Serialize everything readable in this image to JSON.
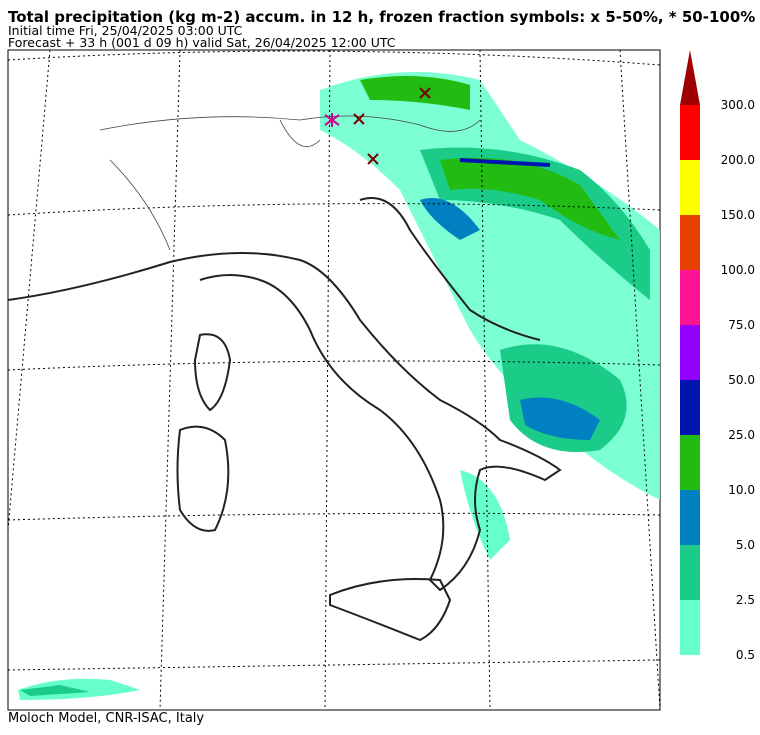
{
  "header": {
    "title": "Total precipitation (kg m-2) accum. in 12 h, frozen fraction symbols: x 5-50%, * 50-100%",
    "initial_time": "Initial time  Fri, 25/04/2025  03:00 UTC",
    "forecast": "Forecast  +  33 h  (001 d 09 h)  valid Sat, 26/04/2025 12:00 UTC"
  },
  "footer": "Moloch Model, CNR-ISAC, Italy",
  "colorbar": {
    "labels": [
      "0.5",
      "2.5",
      "5.0",
      "10.0",
      "25.0",
      "50.0",
      "75.0",
      "100.0",
      "150.0",
      "200.0",
      "300.0"
    ],
    "colors": [
      "#66ffcc",
      "#1acc88",
      "#0080c0",
      "#22bb11",
      "#0015b0",
      "#9400ff",
      "#ff1493",
      "#e84000",
      "#ffff00",
      "#ff0000",
      "#a00000"
    ]
  }
}
